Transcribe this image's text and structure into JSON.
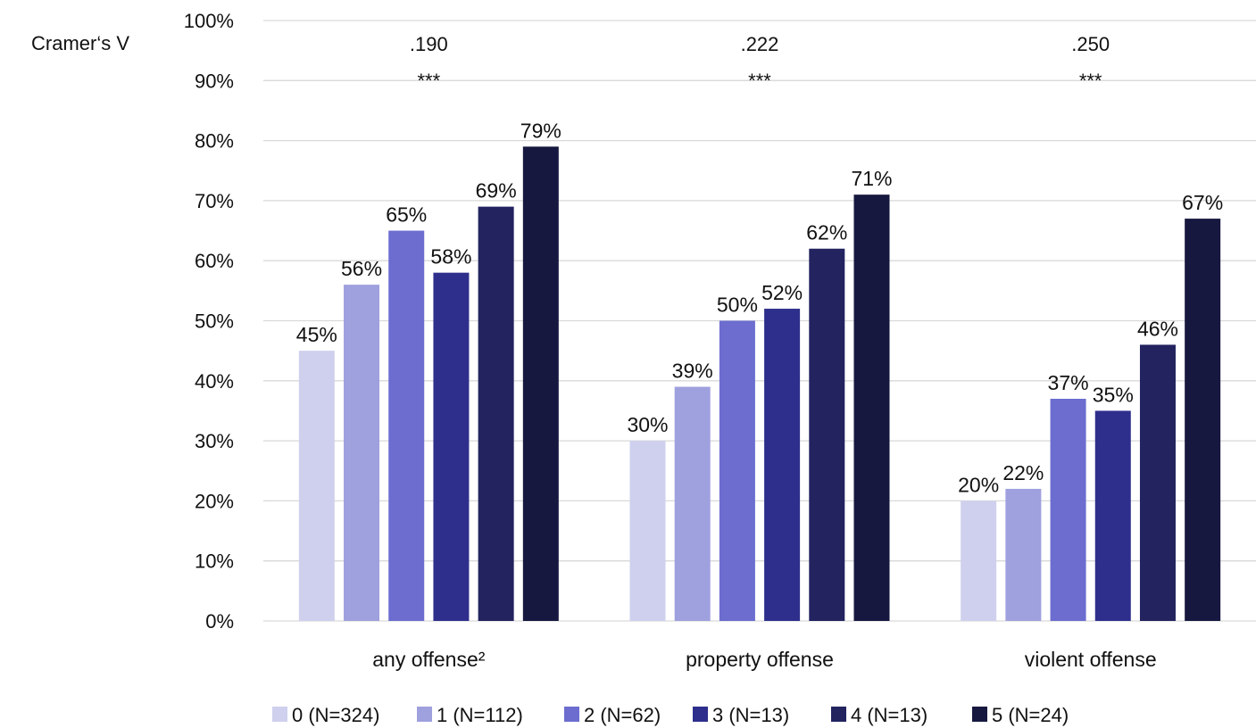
{
  "chart_data": {
    "type": "bar",
    "categories": [
      "any offense²",
      "property offense",
      "violent offense"
    ],
    "series": [
      {
        "name": "0 (N=324)",
        "values": [
          45,
          30,
          20
        ],
        "labels": [
          "45%",
          "30%",
          "20%"
        ],
        "color": "#cfd0ee"
      },
      {
        "name": "1 (N=112)",
        "values": [
          56,
          39,
          22
        ],
        "labels": [
          "56%",
          "39%",
          "22%"
        ],
        "color": "#9fa0de"
      },
      {
        "name": "2 (N=62)",
        "values": [
          65,
          50,
          37
        ],
        "labels": [
          "65%",
          "50%",
          "37%"
        ],
        "color": "#6c6dcf"
      },
      {
        "name": "3 (N=13)",
        "values": [
          58,
          52,
          35
        ],
        "labels": [
          "58%",
          "52%",
          "35%"
        ],
        "color": "#2e2f8c"
      },
      {
        "name": "4 (N=13)",
        "values": [
          69,
          62,
          46
        ],
        "labels": [
          "69%",
          "62%",
          "46%"
        ],
        "color": "#22235f"
      },
      {
        "name": "5 (N=24)",
        "values": [
          79,
          71,
          67
        ],
        "labels": [
          "79%",
          "71%",
          "67%"
        ],
        "color": "#17183f"
      }
    ],
    "ylim": [
      0,
      100
    ],
    "yticks": [
      "0%",
      "10%",
      "20%",
      "30%",
      "40%",
      "50%",
      "60%",
      "70%",
      "80%",
      "90%",
      "100%"
    ],
    "grid": true,
    "legend_position": "bottom",
    "annotation_label": "Cramer‘s V",
    "cramers_v": [
      ".190",
      ".222",
      ".250"
    ],
    "significance": [
      "***",
      "***",
      "***"
    ]
  }
}
